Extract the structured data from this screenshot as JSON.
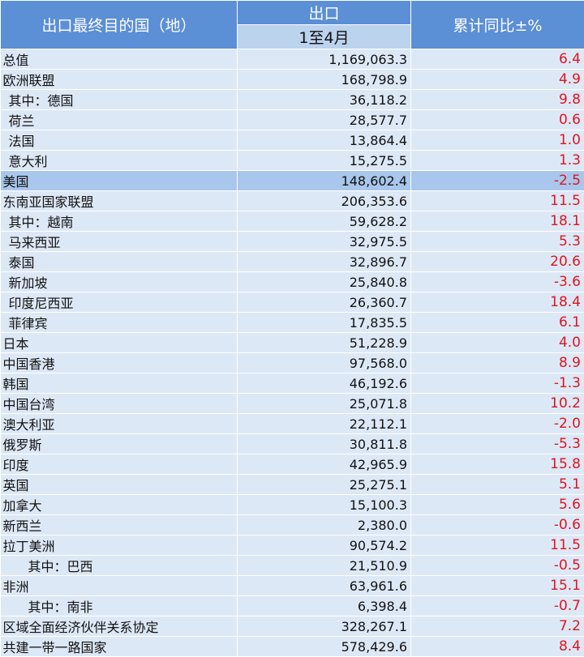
{
  "header": {
    "dest": "出口最终目的国（地）",
    "export": "出口",
    "period": "1至4月",
    "yoy": "累计同比±%"
  },
  "rows": [
    {
      "name": "总值",
      "value": "1,169,063.3",
      "pct": "6.4",
      "indent": 0
    },
    {
      "name": "欧洲联盟",
      "value": "168,798.9",
      "pct": "4.9",
      "indent": 0
    },
    {
      "name": "其中：德国",
      "value": "36,118.2",
      "pct": "9.8",
      "indent": 1
    },
    {
      "name": "荷兰",
      "value": "28,577.7",
      "pct": "0.6",
      "indent": 1
    },
    {
      "name": "法国",
      "value": "13,864.4",
      "pct": "1.0",
      "indent": 1
    },
    {
      "name": "意大利",
      "value": "15,275.5",
      "pct": "1.3",
      "indent": 1
    },
    {
      "name": "美国",
      "value": "148,602.4",
      "pct": "-2.5",
      "indent": 0,
      "highlight": true
    },
    {
      "name": "东南亚国家联盟",
      "value": "206,353.6",
      "pct": "11.5",
      "indent": 0
    },
    {
      "name": "其中：越南",
      "value": "59,628.2",
      "pct": "18.1",
      "indent": 1
    },
    {
      "name": "马来西亚",
      "value": "32,975.5",
      "pct": "5.3",
      "indent": 1
    },
    {
      "name": "泰国",
      "value": "32,896.7",
      "pct": "20.6",
      "indent": 1
    },
    {
      "name": "新加坡",
      "value": "25,840.8",
      "pct": "-3.6",
      "indent": 1
    },
    {
      "name": "印度尼西亚",
      "value": "26,360.7",
      "pct": "18.4",
      "indent": 1
    },
    {
      "name": "菲律宾",
      "value": "17,835.5",
      "pct": "6.1",
      "indent": 1
    },
    {
      "name": "日本",
      "value": "51,228.9",
      "pct": "4.0",
      "indent": 0
    },
    {
      "name": "中国香港",
      "value": "97,568.0",
      "pct": "8.9",
      "indent": 0
    },
    {
      "name": "韩国",
      "value": "46,192.6",
      "pct": "-1.3",
      "indent": 0
    },
    {
      "name": "中国台湾",
      "value": "25,071.8",
      "pct": "10.2",
      "indent": 0
    },
    {
      "name": "澳大利亚",
      "value": "22,112.1",
      "pct": "-2.0",
      "indent": 0
    },
    {
      "name": "俄罗斯",
      "value": "30,811.8",
      "pct": "-5.3",
      "indent": 0
    },
    {
      "name": "印度",
      "value": "42,965.9",
      "pct": "15.8",
      "indent": 0
    },
    {
      "name": "英国",
      "value": "25,275.1",
      "pct": "5.1",
      "indent": 0
    },
    {
      "name": "加拿大",
      "value": "15,100.3",
      "pct": "5.6",
      "indent": 0
    },
    {
      "name": "新西兰",
      "value": "2,380.0",
      "pct": "-0.6",
      "indent": 0
    },
    {
      "name": "拉丁美洲",
      "value": "90,574.2",
      "pct": "11.5",
      "indent": 0
    },
    {
      "name": "其中：巴西",
      "value": "21,510.9",
      "pct": "-0.5",
      "indent": 2
    },
    {
      "name": "非洲",
      "value": "63,961.6",
      "pct": "15.1",
      "indent": 0
    },
    {
      "name": "其中：南非",
      "value": "6,398.4",
      "pct": "-0.7",
      "indent": 2
    },
    {
      "name": "区域全面经济伙伴关系协定",
      "value": "328,267.1",
      "pct": "7.2",
      "indent": 0
    },
    {
      "name": "共建一带一路国家",
      "value": "578,429.6",
      "pct": "8.4",
      "indent": 0
    }
  ]
}
